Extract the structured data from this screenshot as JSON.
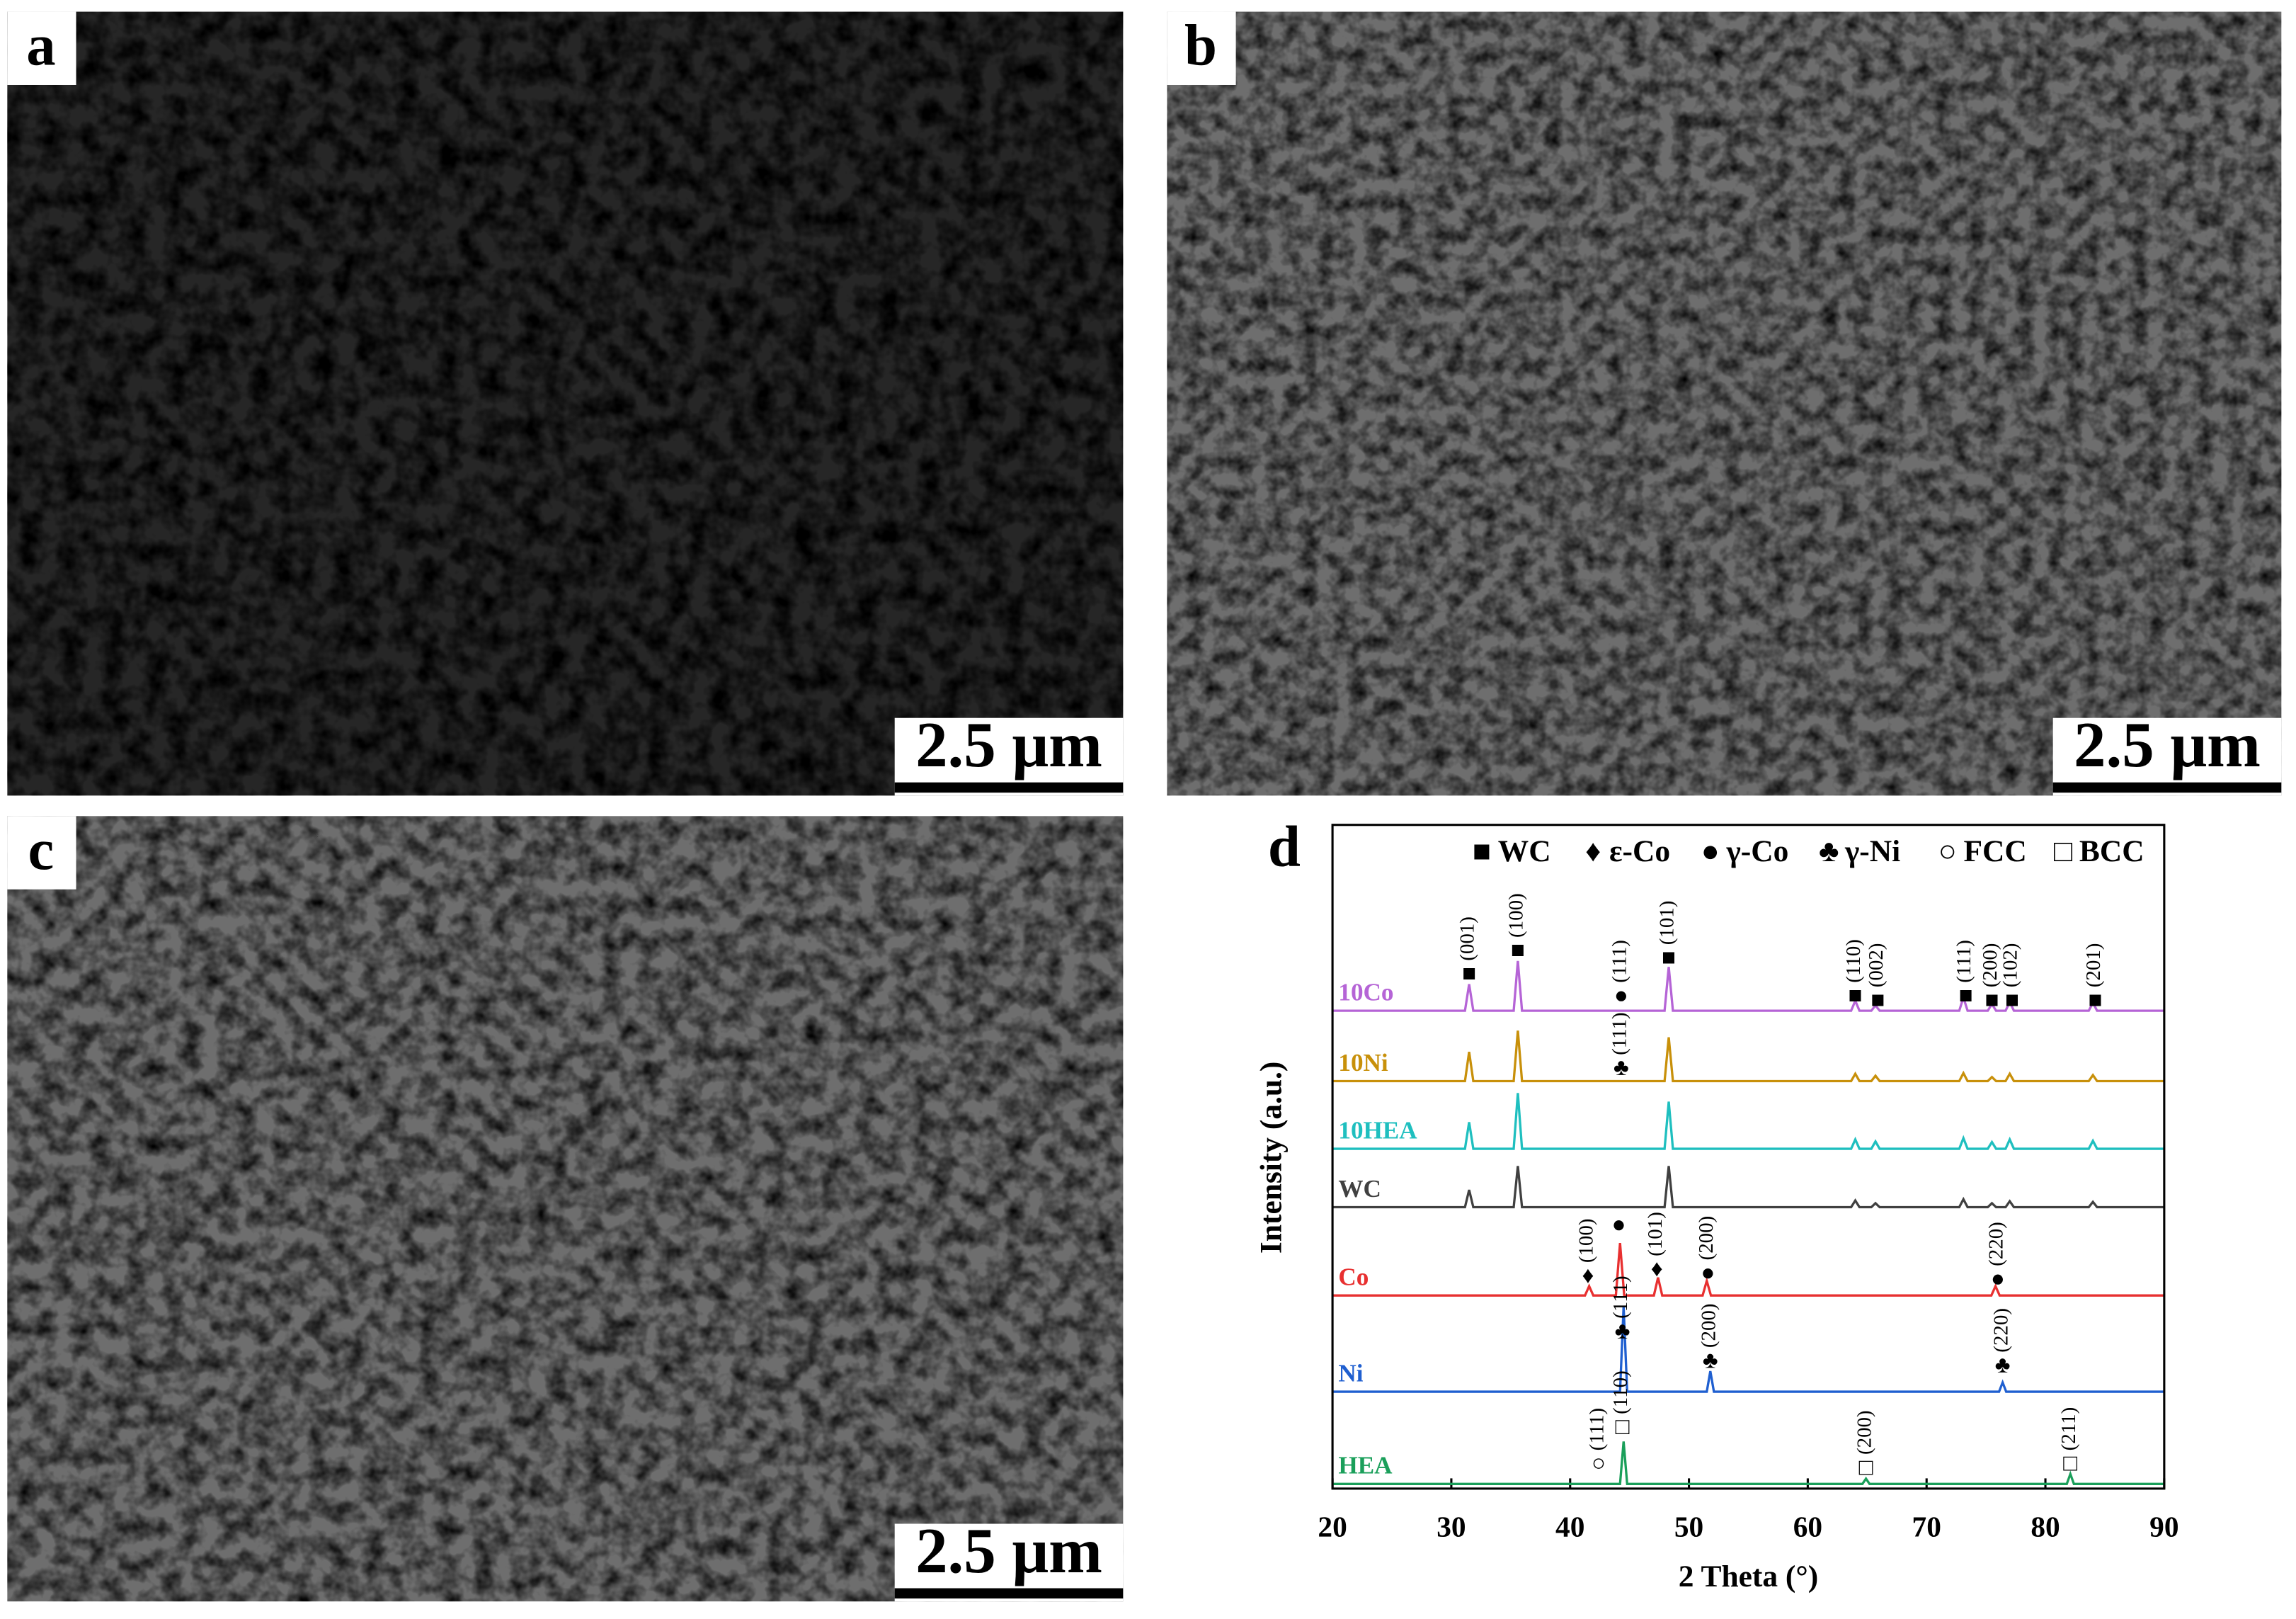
{
  "panels": [
    {
      "label": "a",
      "scale_bar": "2.5 μm"
    },
    {
      "label": "b",
      "scale_bar": "2.5 μm"
    },
    {
      "label": "c",
      "scale_bar": "2.5 μm"
    }
  ],
  "chart_data": {
    "type": "line",
    "panel_label": "d",
    "x_label": "2 Theta (°)",
    "y_label": "Intensity (a.u.)",
    "xlim": [
      20,
      90
    ],
    "xticks": [
      20,
      30,
      40,
      50,
      60,
      70,
      80,
      90
    ],
    "ylim": [
      0,
      100
    ],
    "legend": [
      {
        "symbol": "■",
        "label": "WC"
      },
      {
        "symbol": "♦",
        "label": "ε-Co"
      },
      {
        "symbol": "●",
        "label": "γ-Co"
      },
      {
        "symbol": "♣",
        "label": "γ-Ni"
      },
      {
        "symbol": "○",
        "label": "FCC"
      },
      {
        "symbol": "□",
        "label": "BCC"
      }
    ],
    "series": [
      {
        "name": "10Co",
        "color": "#b564d6",
        "x": [
          20,
          31.15,
          31.5,
          31.85,
          35.25,
          35.6,
          35.95,
          47.95,
          48.3,
          48.65,
          63.65,
          64,
          64.35,
          65.35,
          65.7,
          66.05,
          72.75,
          73.1,
          73.45,
          75.15,
          75.5,
          75.85,
          76.65,
          77,
          77.35,
          83.65,
          84,
          84.35,
          90
        ],
        "values": [
          72,
          72,
          76,
          72,
          72,
          79.5,
          72,
          72,
          78.6,
          72,
          72,
          73.5,
          72,
          72,
          72.8,
          72,
          72,
          74,
          72,
          72,
          73,
          72,
          72,
          73.3,
          72,
          72,
          73.2,
          72,
          72
        ]
      },
      {
        "name": "10Ni",
        "color": "#c8900a",
        "x": [
          20,
          31.15,
          31.5,
          31.85,
          35.25,
          35.6,
          35.95,
          47.95,
          48.3,
          48.65,
          63.65,
          64,
          64.35,
          65.35,
          65.7,
          66.05,
          72.75,
          73.1,
          73.45,
          75.15,
          75.5,
          75.85,
          76.65,
          77,
          77.35,
          83.65,
          84,
          84.35,
          90
        ],
        "values": [
          61.4,
          61.4,
          65.8,
          61.4,
          61.4,
          69,
          61.4,
          61.4,
          68,
          61.4,
          61.4,
          62.5,
          61.4,
          61.4,
          62.2,
          61.4,
          61.4,
          62.6,
          61.4,
          61.4,
          62,
          61.4,
          61.4,
          62.5,
          61.4,
          61.4,
          62.3,
          61.4,
          61.4
        ]
      },
      {
        "name": "10HEA",
        "color": "#1fbfbf",
        "x": [
          20,
          31.15,
          31.5,
          31.85,
          35.25,
          35.6,
          35.95,
          47.95,
          48.3,
          48.65,
          63.65,
          64,
          64.35,
          65.35,
          65.7,
          66.05,
          72.75,
          73.1,
          73.45,
          75.15,
          75.5,
          75.85,
          76.65,
          77,
          77.35,
          83.65,
          84,
          84.35,
          90
        ],
        "values": [
          51.2,
          51.2,
          55.2,
          51.2,
          51.2,
          59.6,
          51.2,
          51.2,
          58.3,
          51.2,
          51.2,
          52.6,
          51.2,
          51.2,
          52.3,
          51.2,
          51.2,
          52.8,
          51.2,
          51.2,
          52.2,
          51.2,
          51.2,
          52.6,
          51.2,
          51.2,
          52.4,
          51.2,
          51.2
        ]
      },
      {
        "name": "WC",
        "color": "#404040",
        "x": [
          20,
          31.15,
          31.5,
          31.85,
          35.25,
          35.6,
          35.95,
          47.95,
          48.3,
          48.65,
          63.65,
          64,
          64.35,
          65.35,
          65.7,
          66.05,
          72.75,
          73.1,
          73.45,
          75.15,
          75.5,
          75.85,
          76.65,
          77,
          77.35,
          83.65,
          84,
          84.35,
          90
        ],
        "values": [
          42.4,
          42.4,
          45,
          42.4,
          42.4,
          48.6,
          42.4,
          42.4,
          48.6,
          42.4,
          42.4,
          43.4,
          42.4,
          42.4,
          43,
          42.4,
          42.4,
          43.6,
          42.4,
          42.4,
          43,
          42.4,
          42.4,
          43.3,
          42.4,
          42.4,
          43.2,
          42.4,
          42.4
        ]
      },
      {
        "name": "Co",
        "color": "#e83030",
        "x": [
          20,
          41.25,
          41.6,
          41.95,
          43.85,
          44.2,
          44.55,
          47.05,
          47.4,
          47.75,
          51.15,
          51.5,
          51.85,
          75.45,
          75.8,
          76.15,
          90
        ],
        "values": [
          29.1,
          29.1,
          30.5,
          29.1,
          29.1,
          37,
          29.1,
          29.1,
          31.8,
          29.1,
          29.1,
          31.3,
          29.1,
          29.1,
          30.5,
          29.1,
          29.1
        ]
      },
      {
        "name": "Ni",
        "color": "#1f5fd0",
        "x": [
          20,
          44.2,
          44.5,
          44.8,
          51.5,
          51.8,
          52.1,
          76.1,
          76.4,
          76.7,
          90
        ],
        "values": [
          14.6,
          14.6,
          27.4,
          14.6,
          14.6,
          17.7,
          14.6,
          14.6,
          16,
          14.6,
          14.6
        ]
      },
      {
        "name": "HEA",
        "color": "#1a9f5a",
        "x": [
          20,
          44.2,
          44.5,
          44.8,
          64.6,
          64.9,
          65.2,
          81.8,
          82.1,
          82.4,
          90
        ],
        "values": [
          0.7,
          0.7,
          7.1,
          0.7,
          0.7,
          1.5,
          0.7,
          0.7,
          2.2,
          0.7,
          0.7
        ]
      }
    ],
    "annotations": [
      {
        "symbol": "■",
        "text": "(001)",
        "x": 31.5,
        "y": 77.3
      },
      {
        "symbol": "■",
        "text": "(100)",
        "x": 35.6,
        "y": 80.8
      },
      {
        "symbol": "●",
        "text": "(111)",
        "x": 44.3,
        "y": 74
      },
      {
        "symbol": "■",
        "text": "(101)",
        "x": 48.3,
        "y": 79.7
      },
      {
        "symbol": "■",
        "text": "(110)",
        "x": 64.0,
        "y": 74
      },
      {
        "symbol": "■",
        "text": "(002)",
        "x": 65.9,
        "y": 73.3
      },
      {
        "symbol": "■",
        "text": "(111)",
        "x": 73.3,
        "y": 74
      },
      {
        "symbol": "■",
        "text": "(200)",
        "x": 75.5,
        "y": 73.3
      },
      {
        "symbol": "■",
        "text": "(102)",
        "x": 77.2,
        "y": 73.3
      },
      {
        "symbol": "■",
        "text": "(201)",
        "x": 84.2,
        "y": 73.3
      },
      {
        "symbol": "♣",
        "text": "(111)",
        "x": 44.3,
        "y": 63.1
      },
      {
        "symbol": "♦",
        "text": "(100)",
        "x": 41.5,
        "y": 31.8
      },
      {
        "symbol": "●",
        "text": "",
        "x": 44.1,
        "y": 39.5
      },
      {
        "symbol": "♦",
        "text": "(101)",
        "x": 47.3,
        "y": 32.8
      },
      {
        "symbol": "●",
        "text": "(200)",
        "x": 51.6,
        "y": 32.2
      },
      {
        "symbol": "●",
        "text": "(220)",
        "x": 76.0,
        "y": 31.3
      },
      {
        "symbol": "♣",
        "text": "(111)",
        "x": 44.4,
        "y": 23.4
      },
      {
        "symbol": "♣",
        "text": "(200)",
        "x": 51.8,
        "y": 19
      },
      {
        "symbol": "♣",
        "text": "(220)",
        "x": 76.4,
        "y": 18.3
      },
      {
        "symbol": "○",
        "text": "(111)",
        "x": 42.4,
        "y": 3.5
      },
      {
        "symbol": "□",
        "text": "(110)",
        "x": 44.4,
        "y": 9
      },
      {
        "symbol": "□",
        "text": "(200)",
        "x": 64.9,
        "y": 2.9
      },
      {
        "symbol": "□",
        "text": "(211)",
        "x": 82.1,
        "y": 3.5
      }
    ]
  }
}
